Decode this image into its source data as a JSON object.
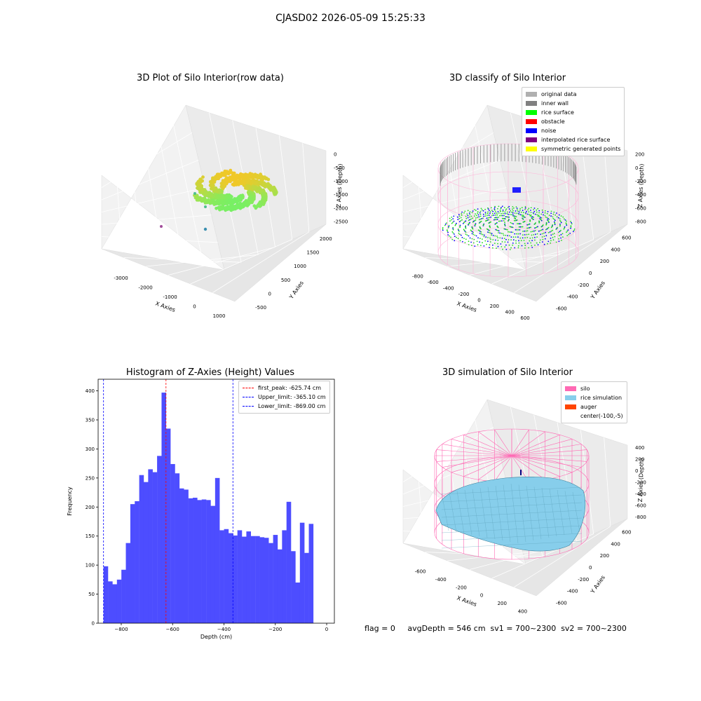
{
  "suptitle": "CJASD02 2026-05-09 15:25:33",
  "status_text": "flag = 0     avgDepth = 546 cm  sv1 = 700~2300  sv2 = 700~2300",
  "chart_data": [
    {
      "type": "scatter",
      "projection": "3d",
      "title": "3D Plot of Silo Interior(row data)",
      "xlabel": "X Axies",
      "ylabel": "Y Axies",
      "zlabel": "Z Axies (Depth)",
      "xticks": [
        "-3000",
        "-2000",
        "-1000",
        "0",
        "1000"
      ],
      "yticks": [
        "-500",
        "0",
        "500",
        "1000",
        "1500",
        "2000"
      ],
      "zticks": [
        "0",
        "-500",
        "-1000",
        "-1500",
        "-2000",
        "-2500"
      ],
      "grid": true
    },
    {
      "type": "scatter",
      "projection": "3d",
      "title": "3D classify of Silo Interior",
      "xlabel": "X Axies",
      "ylabel": "Y Axies",
      "zlabel": "Z Axies (Depth)",
      "xticks": [
        "-800",
        "-600",
        "-400",
        "-200",
        "0",
        "200",
        "400",
        "600"
      ],
      "yticks": [
        "-600",
        "-400",
        "-200",
        "0",
        "200",
        "400",
        "600"
      ],
      "zticks": [
        "200",
        "0",
        "-200",
        "-400",
        "-600",
        "-800"
      ],
      "legend_position": "top-right",
      "legend": [
        {
          "label": "original data",
          "color": "#b0b0b0"
        },
        {
          "label": "inner wall",
          "color": "#808080"
        },
        {
          "label": "rice surface",
          "color": "#00ff00"
        },
        {
          "label": "obstacle",
          "color": "#ff0000"
        },
        {
          "label": "noise",
          "color": "#0000ff"
        },
        {
          "label": "interpolated rice surface",
          "color": "#800080"
        },
        {
          "label": "symmetric generated points",
          "color": "#ffff00"
        }
      ],
      "grid": true
    },
    {
      "type": "bar",
      "title": "Histogram of Z-Axies (Height) Values",
      "xlabel": "Depth (cm)",
      "ylabel": "Frequency",
      "xlim": [
        -890,
        30
      ],
      "ylim": [
        0,
        420
      ],
      "xticks": [
        -800,
        -600,
        -400,
        -200,
        0
      ],
      "yticks": [
        0,
        50,
        100,
        150,
        200,
        250,
        300,
        350,
        400
      ],
      "bin_start": -869.0,
      "bin_width": 17.38,
      "values": [
        98,
        72,
        67,
        75,
        92,
        138,
        205,
        210,
        255,
        243,
        265,
        260,
        288,
        397,
        335,
        274,
        258,
        232,
        230,
        215,
        216,
        212,
        213,
        212,
        202,
        250,
        160,
        162,
        155,
        151,
        160,
        149,
        158,
        150,
        150,
        148,
        147,
        138,
        152,
        127,
        160,
        209,
        124,
        70,
        173,
        121,
        171
      ],
      "bar_color": "#4d4dff",
      "vlines": [
        {
          "x": -625.74,
          "color": "#ff0000",
          "label": "first_peak: -625.74 cm"
        },
        {
          "x": -365.1,
          "color": "#0000ff",
          "label": "Upper_limit: -365.10 cm"
        },
        {
          "x": -869.0,
          "color": "#0000ff",
          "label": "Lower_limit: -869.00 cm"
        }
      ],
      "legend_position": "top-right"
    },
    {
      "type": "surface",
      "projection": "3d",
      "title": "3D simulation of Silo Interior",
      "xlabel": "X Axies",
      "ylabel": "Y Axies",
      "zlabel": "Z Axies (Depth)",
      "xticks": [
        "-600",
        "-400",
        "-200",
        "0",
        "200",
        "400"
      ],
      "yticks": [
        "-600",
        "-400",
        "-200",
        "0",
        "200",
        "400",
        "600"
      ],
      "zticks": [
        "400",
        "200",
        "0",
        "-200",
        "-400",
        "-600",
        "-800"
      ],
      "legend_position": "top-right",
      "legend": [
        {
          "label": "silo",
          "color": "#ff69b4"
        },
        {
          "label": "rice simulation",
          "color": "#87ceeb"
        },
        {
          "label": "auger",
          "color": "#ff4500"
        },
        {
          "label": "center(-100,-5)",
          "color": ""
        }
      ],
      "grid": true
    }
  ]
}
